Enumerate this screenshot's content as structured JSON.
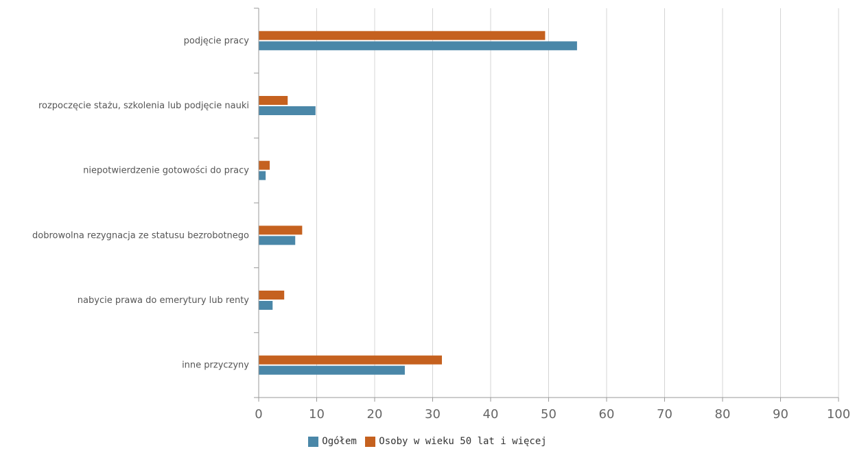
{
  "chart_data": {
    "type": "bar",
    "orientation": "horizontal",
    "title": "",
    "xlabel": "",
    "ylabel": "",
    "categories": [
      "podjęcie pracy",
      "rozpoczęcie stażu, szkolenia lub podjęcie nauki",
      "niepotwierdzenie gotowości do pracy",
      "dobrowolna rezygnacja ze statusu bezrobotnego",
      "nabycie prawa do emerytury lub renty",
      "inne przyczyny"
    ],
    "series": [
      {
        "name": "Ogółem",
        "color": "#4a87a8",
        "values": [
          54.9,
          9.8,
          1.2,
          6.3,
          2.4,
          25.2
        ]
      },
      {
        "name": "Osoby w wieku 50 lat i więcej",
        "color": "#c5611f",
        "values": [
          49.4,
          5.0,
          1.9,
          7.5,
          4.4,
          31.6
        ]
      }
    ],
    "xlim": [
      0,
      100
    ],
    "x_ticks": [
      "0",
      "10",
      "20",
      "30",
      "40",
      "50",
      "60",
      "70",
      "80",
      "90",
      "100"
    ],
    "grid": true,
    "legend_position": "bottom"
  }
}
